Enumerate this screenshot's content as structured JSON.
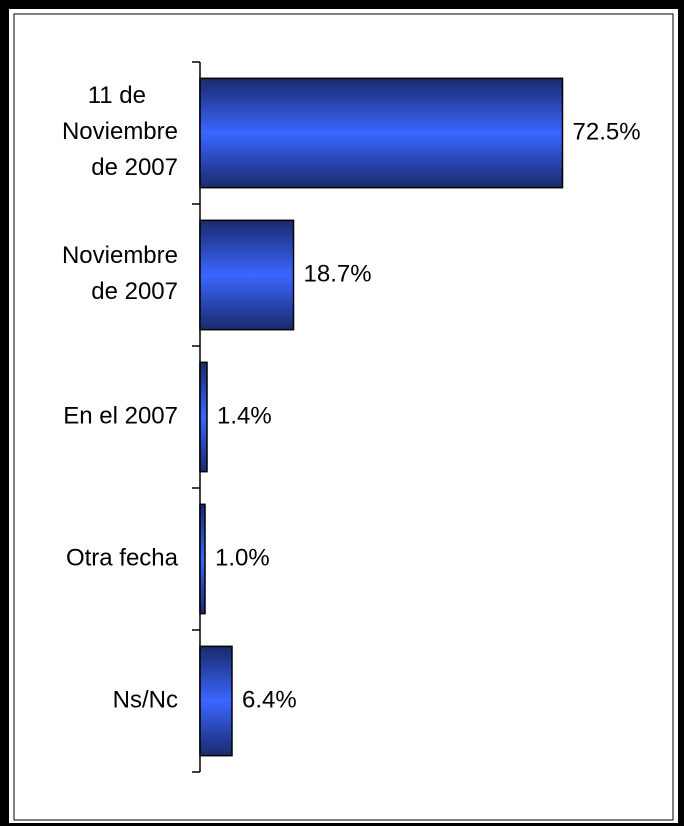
{
  "chart_data": {
    "type": "bar",
    "orientation": "horizontal",
    "categories": [
      "11 de\nNoviembre\nde 2007",
      "Noviembre\nde 2007",
      "En el 2007",
      "Otra fecha",
      "Ns/Nc"
    ],
    "values": [
      72.5,
      18.7,
      1.4,
      1.0,
      6.4
    ],
    "value_labels": [
      "72.5%",
      "18.7%",
      "1.4%",
      "1.0%",
      "6.4%"
    ],
    "color": "#2f56e0"
  }
}
